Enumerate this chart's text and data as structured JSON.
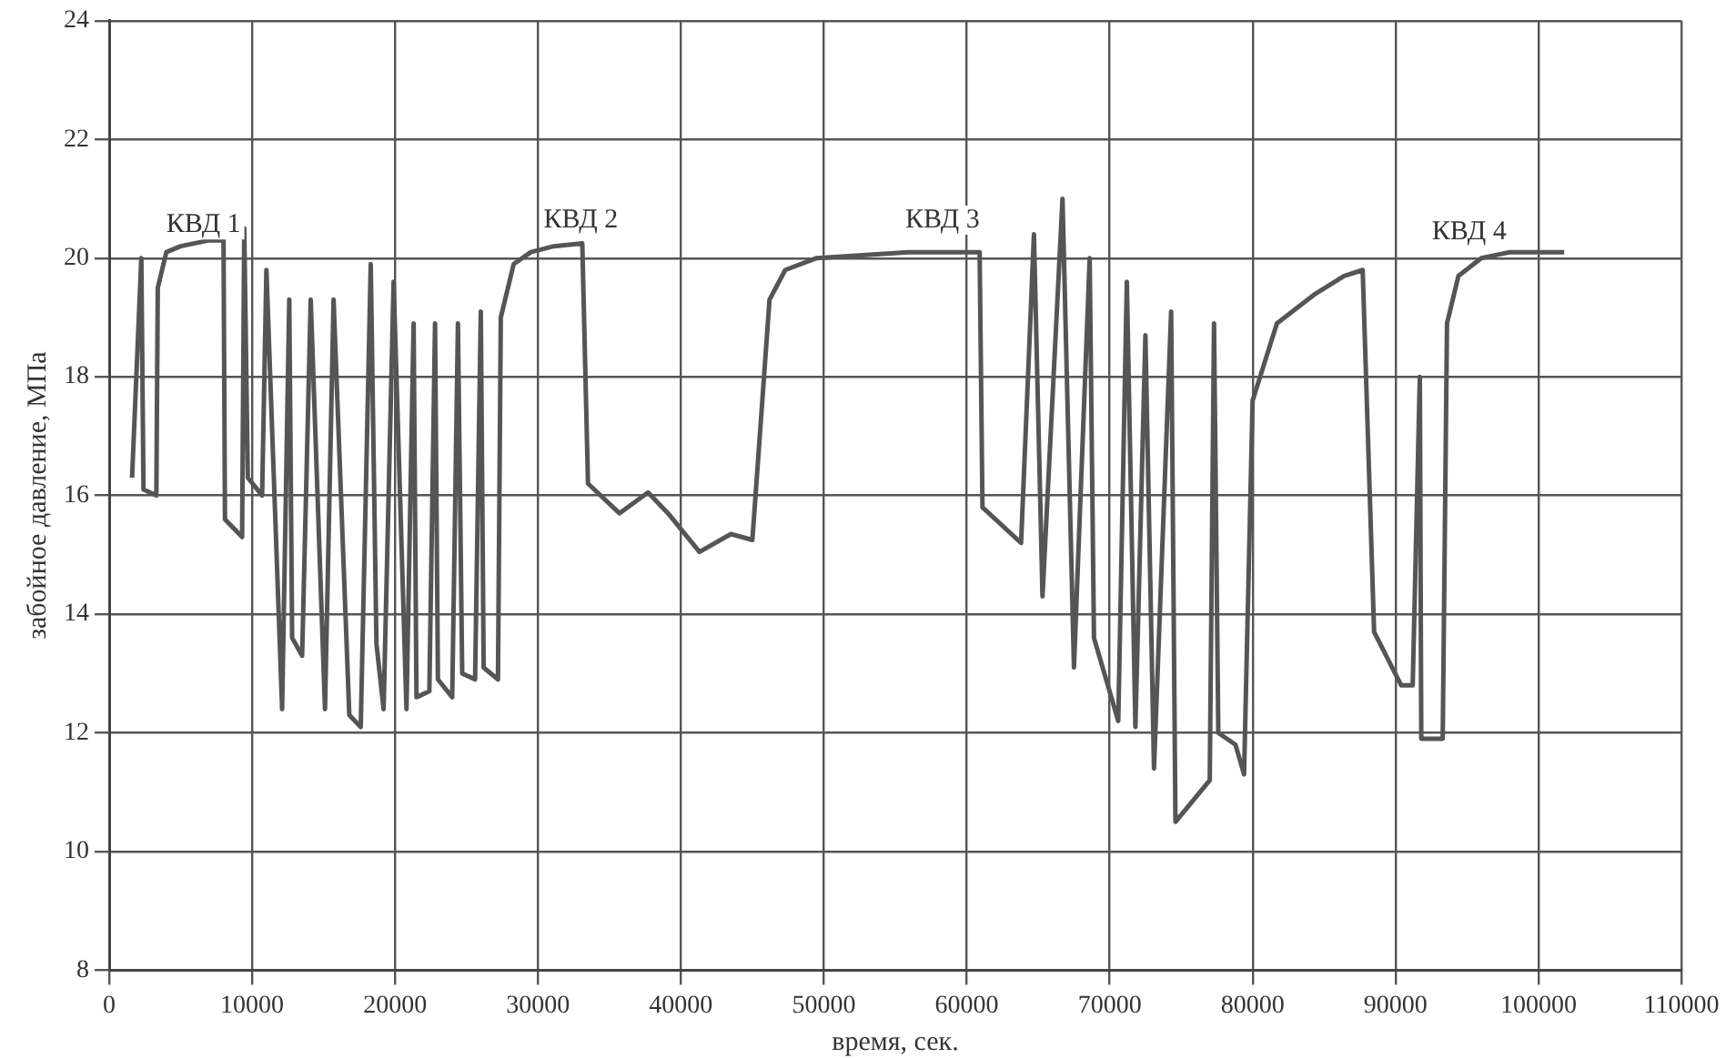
{
  "chart_data": {
    "type": "line",
    "xlabel": "время, сек.",
    "ylabel": "забойное давление, МПа",
    "xlim": [
      0,
      110000
    ],
    "xticks": [
      0,
      10000,
      20000,
      30000,
      40000,
      50000,
      60000,
      70000,
      80000,
      90000,
      100000,
      110000
    ],
    "ylim": [
      8,
      24
    ],
    "yticks": [
      8,
      10,
      12,
      14,
      16,
      18,
      20,
      22,
      24
    ],
    "grid": true,
    "marker": "none",
    "line_style": "solid",
    "series": [
      {
        "color": "#555555",
        "x": [
          1600,
          2250,
          2400,
          3300,
          3400,
          4000,
          5000,
          7000,
          8000,
          8100,
          9300,
          9450,
          9700,
          10700,
          11000,
          12100,
          12600,
          12800,
          13500,
          14100,
          15100,
          15700,
          16800,
          17600,
          18300,
          18700,
          19200,
          19900,
          20800,
          21300,
          21500,
          22400,
          22800,
          23000,
          24000,
          24400,
          24700,
          25600,
          26000,
          26200,
          27200,
          27400,
          28300,
          29500,
          31100,
          33100,
          33500,
          35700,
          37700,
          39100,
          41300,
          43500,
          45000,
          46200,
          47300,
          49500,
          55900,
          60900,
          61100,
          63800,
          64700,
          65300,
          66700,
          67500,
          68600,
          68900,
          70600,
          71200,
          71800,
          72500,
          73100,
          74300,
          74600,
          77000,
          77300,
          77600,
          78800,
          79400,
          80000,
          81700,
          84400,
          86400,
          87700,
          88500,
          90400,
          91200,
          91700,
          91800,
          93300,
          93600,
          94400,
          96000,
          98000,
          101800
        ],
        "values": [
          16.3,
          20.0,
          16.1,
          16.0,
          19.5,
          20.1,
          20.2,
          20.3,
          20.3,
          15.6,
          15.3,
          20.5,
          16.3,
          16.0,
          19.8,
          12.4,
          19.3,
          13.6,
          13.3,
          19.3,
          12.4,
          19.3,
          12.3,
          12.1,
          19.9,
          13.5,
          12.4,
          19.6,
          12.4,
          18.9,
          12.6,
          12.7,
          18.9,
          12.9,
          12.6,
          18.9,
          13.0,
          12.9,
          19.1,
          13.1,
          12.9,
          19.0,
          19.9,
          20.1,
          20.2,
          20.25,
          16.2,
          15.7,
          16.05,
          15.7,
          15.05,
          15.35,
          15.25,
          19.3,
          19.8,
          20.0,
          20.1,
          20.1,
          15.8,
          15.2,
          20.4,
          14.3,
          21.0,
          13.1,
          20.0,
          13.6,
          12.2,
          19.6,
          12.1,
          18.7,
          11.4,
          19.1,
          10.5,
          11.2,
          18.9,
          12.0,
          11.8,
          11.3,
          17.6,
          18.9,
          19.4,
          19.7,
          19.8,
          13.7,
          12.8,
          12.8,
          18.0,
          11.9,
          11.9,
          18.9,
          19.7,
          20.0,
          20.1,
          20.1
        ]
      }
    ],
    "annotations": [
      "КВД 1",
      "КВД 2",
      "КВД 3",
      "КВД 4"
    ]
  }
}
